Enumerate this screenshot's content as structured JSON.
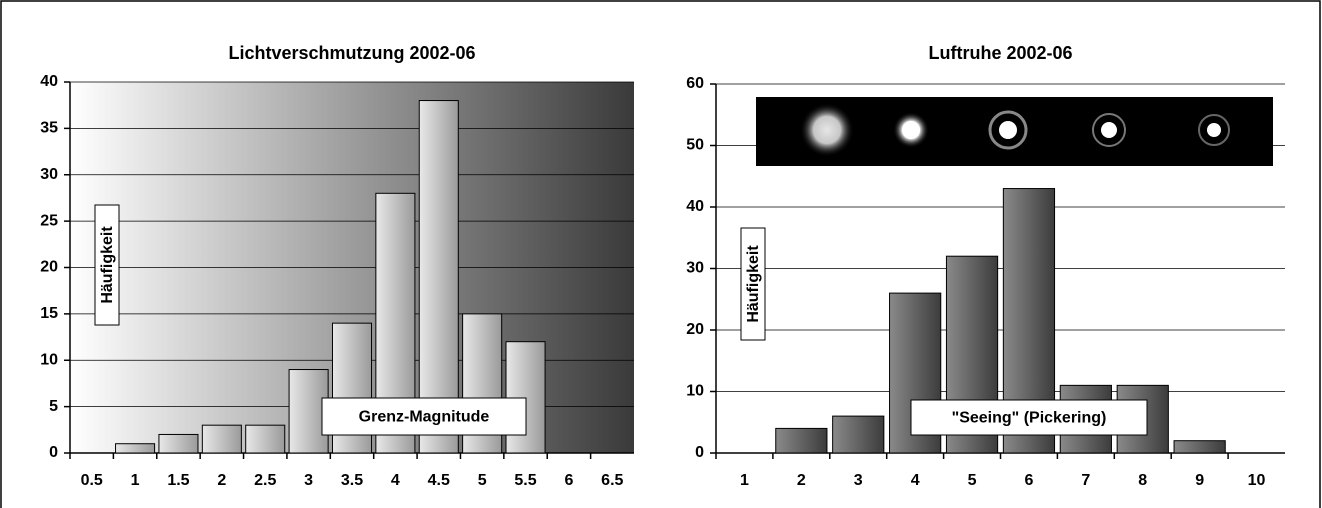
{
  "chart_data": [
    {
      "type": "bar",
      "title": "Lichtverschmutzung 2002-06",
      "y_label": "Häufigkeit",
      "x_label": "Grenz-Magnitude",
      "categories": [
        "0.5",
        "1",
        "1.5",
        "2",
        "2.5",
        "3",
        "3.5",
        "4",
        "4.5",
        "5",
        "5.5",
        "6",
        "6.5"
      ],
      "values": [
        0,
        1,
        2,
        3,
        3,
        9,
        14,
        28,
        38,
        15,
        12,
        0,
        0
      ],
      "color": "#c4c4c4",
      "ylim": [
        0,
        40
      ],
      "yticks": [
        0,
        5,
        10,
        15,
        20,
        25,
        30,
        35,
        40
      ],
      "grid": true
    },
    {
      "type": "bar",
      "title": "Luftruhe 2002-06",
      "y_label": "Häufigkeit",
      "x_label": "\"Seeing\" (Pickering)",
      "categories": [
        "1",
        "2",
        "3",
        "4",
        "5",
        "6",
        "7",
        "8",
        "9",
        "10"
      ],
      "values": [
        0,
        4,
        6,
        26,
        32,
        43,
        11,
        11,
        2,
        0
      ],
      "color": "#5a5a5a",
      "ylim": [
        0,
        60
      ],
      "yticks": [
        0,
        10,
        20,
        30,
        40,
        50,
        60
      ],
      "grid": true
    }
  ]
}
